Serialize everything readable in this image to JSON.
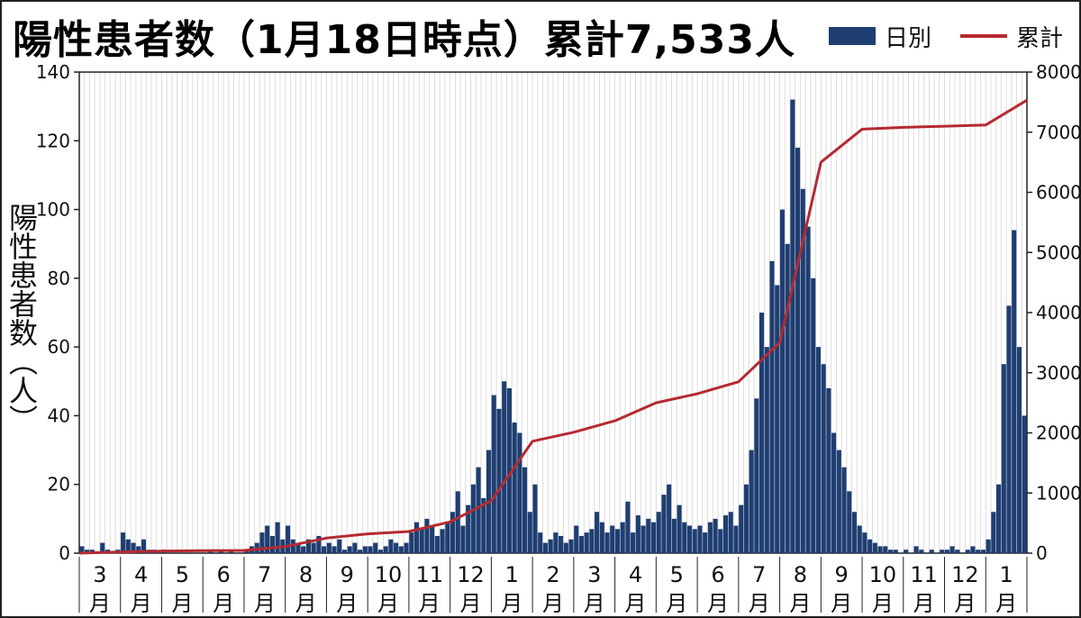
{
  "title": "陽性患者数（1月18日時点）累計7,533人",
  "legend": {
    "bar_label": "日別",
    "line_label": "累計"
  },
  "colors": {
    "bar": "#1f3e72",
    "line": "#b52a32",
    "grid": "#dcdcdc",
    "axis": "#222222"
  },
  "chart_data": {
    "type": "bar+line",
    "title": "陽性患者数（1月18日時点）累計7,533人",
    "ylabel": "陽性患者数（人）",
    "y_left": {
      "min": 0,
      "max": 140,
      "ticks": [
        0,
        20,
        40,
        60,
        80,
        100,
        120,
        140
      ]
    },
    "y_right": {
      "min": 0,
      "max": 8000,
      "ticks": [
        0,
        1000,
        2000,
        3000,
        4000,
        5000,
        6000,
        7000,
        8000
      ]
    },
    "months": [
      "3月",
      "4月",
      "5月",
      "6月",
      "7月",
      "8月",
      "9月",
      "10月",
      "11月",
      "12月",
      "1月",
      "2月",
      "3月",
      "4月",
      "5月",
      "6月",
      "7月",
      "8月",
      "9月",
      "10月",
      "11月",
      "12月",
      "1月"
    ],
    "month_labels": [
      {
        "num": "3",
        "unit": "月"
      },
      {
        "num": "4",
        "unit": "月"
      },
      {
        "num": "5",
        "unit": "月"
      },
      {
        "num": "6",
        "unit": "月"
      },
      {
        "num": "7",
        "unit": "月"
      },
      {
        "num": "8",
        "unit": "月"
      },
      {
        "num": "9",
        "unit": "月"
      },
      {
        "num": "10",
        "unit": "月"
      },
      {
        "num": "11",
        "unit": "月"
      },
      {
        "num": "12",
        "unit": "月"
      },
      {
        "num": "1",
        "unit": "月"
      },
      {
        "num": "2",
        "unit": "月"
      },
      {
        "num": "3",
        "unit": "月"
      },
      {
        "num": "4",
        "unit": "月"
      },
      {
        "num": "5",
        "unit": "月"
      },
      {
        "num": "6",
        "unit": "月"
      },
      {
        "num": "7",
        "unit": "月"
      },
      {
        "num": "8",
        "unit": "月"
      },
      {
        "num": "9",
        "unit": "月"
      },
      {
        "num": "10",
        "unit": "月"
      },
      {
        "num": "11",
        "unit": "月"
      },
      {
        "num": "12",
        "unit": "月"
      },
      {
        "num": "1",
        "unit": "月"
      }
    ],
    "series": [
      {
        "name": "日別",
        "kind": "bar",
        "unit": "people per day (approx. weekly peak levels by month)",
        "values_by_period": [
          [
            2,
            1,
            1,
            0,
            3,
            1,
            0,
            1
          ],
          [
            6,
            4,
            3,
            2,
            4,
            1,
            1,
            0
          ],
          [
            1,
            0,
            0,
            0,
            0,
            0,
            0,
            0
          ],
          [
            0,
            1,
            0,
            1,
            0,
            1,
            0,
            0
          ],
          [
            1,
            2,
            3,
            6,
            8,
            5,
            9,
            4
          ],
          [
            8,
            4,
            3,
            2,
            4,
            3,
            5,
            2
          ],
          [
            3,
            2,
            4,
            1,
            2,
            3,
            1,
            2
          ],
          [
            2,
            3,
            1,
            2,
            4,
            3,
            2,
            3
          ],
          [
            6,
            9,
            7,
            10,
            8,
            5,
            7,
            9
          ],
          [
            12,
            18,
            8,
            14,
            20,
            25,
            16,
            30
          ],
          [
            46,
            42,
            50,
            48,
            38,
            35,
            25,
            12
          ],
          [
            20,
            6,
            3,
            4,
            6,
            5,
            3,
            4
          ],
          [
            8,
            5,
            6,
            7,
            12,
            9,
            6,
            8
          ],
          [
            7,
            9,
            15,
            6,
            11,
            8,
            10,
            9
          ],
          [
            12,
            17,
            20,
            10,
            14,
            9,
            8,
            7
          ],
          [
            8,
            6,
            9,
            10,
            7,
            11,
            12,
            8
          ],
          [
            14,
            20,
            30,
            45,
            70,
            60,
            85,
            78
          ],
          [
            100,
            90,
            132,
            118,
            106,
            95,
            80,
            60
          ],
          [
            55,
            48,
            35,
            30,
            25,
            18,
            12,
            8
          ],
          [
            6,
            4,
            3,
            2,
            2,
            1,
            1,
            0
          ],
          [
            1,
            0,
            2,
            1,
            0,
            1,
            0,
            1
          ],
          [
            1,
            2,
            1,
            0,
            1,
            2,
            1,
            1
          ],
          [
            4,
            12,
            20,
            55,
            72,
            94,
            60,
            40
          ]
        ]
      },
      {
        "name": "累計",
        "kind": "line",
        "unit": "cumulative people",
        "x": [
          0,
          1,
          2,
          3,
          4,
          5,
          6,
          7,
          8,
          9,
          10,
          11,
          12,
          13,
          14,
          15,
          16,
          17,
          18,
          19,
          20,
          21,
          22,
          23
        ],
        "values": [
          0,
          20,
          35,
          40,
          45,
          110,
          250,
          320,
          360,
          520,
          870,
          1860,
          2010,
          2200,
          2500,
          2650,
          2850,
          3500,
          6500,
          7050,
          7080,
          7100,
          7120,
          7533
        ]
      }
    ]
  }
}
